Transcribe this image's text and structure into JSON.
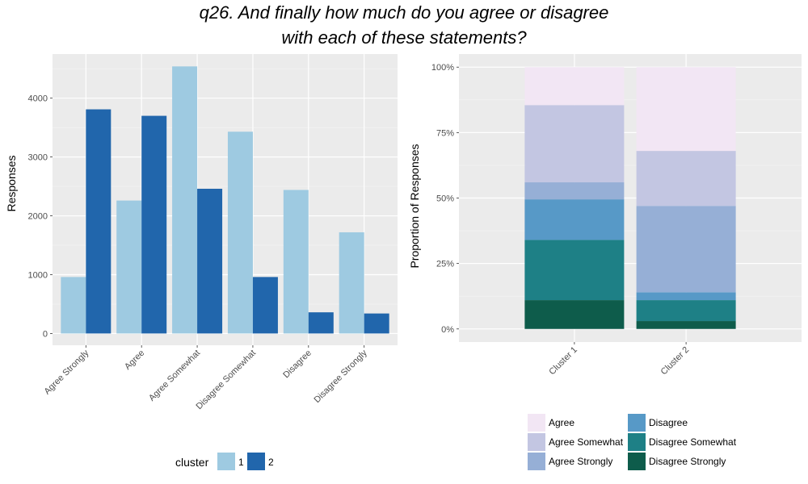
{
  "title": {
    "line1": "q26. And finally how much do you agree or disagree",
    "line2": "with each of these statements?"
  },
  "chart_data": [
    {
      "type": "bar",
      "categories": [
        "Agree Strongly",
        "Agree",
        "Agree Somewhat",
        "Disagree Somewhat",
        "Disagree",
        "Disagree Strongly"
      ],
      "series": [
        {
          "name": "1",
          "color": "#9ecae1",
          "values": [
            960,
            2260,
            4540,
            3430,
            2440,
            1720
          ]
        },
        {
          "name": "2",
          "color": "#2166ac",
          "values": [
            3810,
            3700,
            2460,
            960,
            360,
            340
          ]
        }
      ],
      "ylabel": "Responses",
      "xlabel": "",
      "ylim": [
        -200,
        4750
      ],
      "yticks": [
        0,
        1000,
        2000,
        3000,
        4000
      ],
      "grid": true,
      "legend": {
        "title": "cluster",
        "position": "bottom"
      }
    },
    {
      "type": "bar",
      "stacked": true,
      "categories": [
        "Cluster 1",
        "Cluster 2"
      ],
      "series": [
        {
          "name": "Disagree Strongly",
          "color": "#0e5c4b",
          "values": [
            0.11,
            0.03
          ]
        },
        {
          "name": "Disagree Somewhat",
          "color": "#1e8086",
          "values": [
            0.23,
            0.08
          ]
        },
        {
          "name": "Disagree",
          "color": "#5799c7",
          "values": [
            0.155,
            0.03
          ]
        },
        {
          "name": "Agree Strongly",
          "color": "#96afd6",
          "values": [
            0.065,
            0.33
          ]
        },
        {
          "name": "Agree Somewhat",
          "color": "#c3c6e2",
          "values": [
            0.295,
            0.21
          ]
        },
        {
          "name": "Agree",
          "color": "#f2e6f4",
          "values": [
            0.145,
            0.32
          ]
        }
      ],
      "ylabel": "Proportion of Responses",
      "xlabel": "",
      "ylim": [
        -0.05,
        1.05
      ],
      "yticks": [
        "0%",
        "25%",
        "50%",
        "75%",
        "100%"
      ],
      "grid": true,
      "legend": {
        "position": "bottom",
        "entries": [
          "Agree",
          "Agree Somewhat",
          "Agree Strongly",
          "Disagree",
          "Disagree Somewhat",
          "Disagree Strongly"
        ]
      }
    }
  ]
}
